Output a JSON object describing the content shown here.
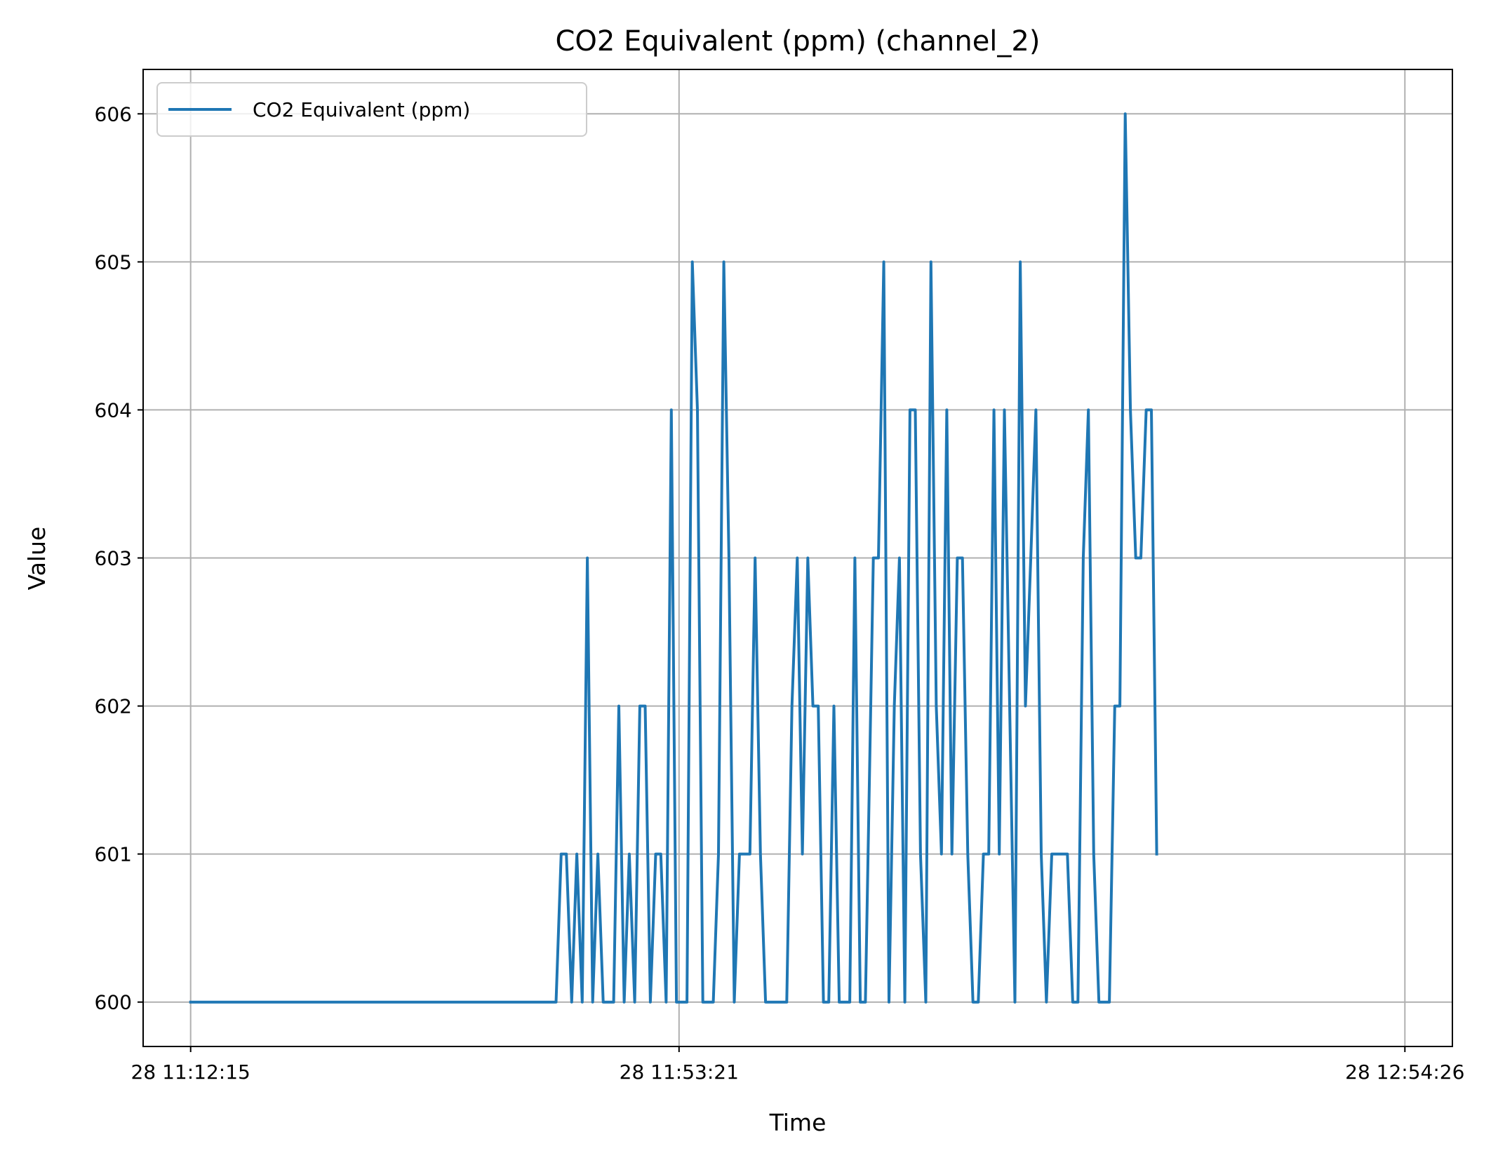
{
  "chart_data": {
    "type": "line",
    "title": "CO2 Equivalent (ppm) (channel_2)",
    "xlabel": "Time",
    "ylabel": "Value",
    "x_tick_labels": [
      "28 11:12:15",
      "28 11:53:21",
      "28 12:54:26"
    ],
    "x_ticks": [
      "11:12:15",
      "11:53:21",
      "12:54:26"
    ],
    "y_ticks": [
      600,
      601,
      602,
      603,
      604,
      605,
      606
    ],
    "xlim": [
      "11:08:15",
      "12:58:26"
    ],
    "ylim": [
      599.7,
      606.3
    ],
    "grid": true,
    "legend_position": "top-left",
    "series": [
      {
        "name": "CO2 Equivalent (ppm)",
        "color": "#1f77b4",
        "points": [
          [
            "11:12:15",
            600
          ],
          [
            "11:43:00",
            600
          ],
          [
            "11:43:26",
            601
          ],
          [
            "11:43:52",
            601
          ],
          [
            "11:44:19",
            600
          ],
          [
            "11:44:45",
            601
          ],
          [
            "11:45:12",
            600
          ],
          [
            "11:45:38",
            603
          ],
          [
            "11:46:05",
            600
          ],
          [
            "11:46:31",
            601
          ],
          [
            "11:46:58",
            600
          ],
          [
            "11:47:51",
            600
          ],
          [
            "11:48:17",
            602
          ],
          [
            "11:48:44",
            600
          ],
          [
            "11:49:10",
            601
          ],
          [
            "11:49:37",
            600
          ],
          [
            "11:50:03",
            602
          ],
          [
            "11:50:30",
            602
          ],
          [
            "11:50:56",
            600
          ],
          [
            "11:51:23",
            601
          ],
          [
            "11:51:49",
            601
          ],
          [
            "11:52:16",
            600
          ],
          [
            "11:52:42",
            604
          ],
          [
            "11:53:08",
            600
          ],
          [
            "11:54:01",
            600
          ],
          [
            "11:54:28",
            605
          ],
          [
            "11:54:54",
            604
          ],
          [
            "11:55:21",
            600
          ],
          [
            "11:56:14",
            600
          ],
          [
            "11:56:40",
            601
          ],
          [
            "11:57:07",
            605
          ],
          [
            "11:57:33",
            603
          ],
          [
            "11:58:00",
            600
          ],
          [
            "11:58:26",
            601
          ],
          [
            "11:59:19",
            601
          ],
          [
            "11:59:45",
            603
          ],
          [
            "12:00:12",
            601
          ],
          [
            "12:00:38",
            600
          ],
          [
            "12:02:25",
            600
          ],
          [
            "12:02:51",
            602
          ],
          [
            "12:03:18",
            603
          ],
          [
            "12:03:44",
            601
          ],
          [
            "12:04:11",
            603
          ],
          [
            "12:04:37",
            602
          ],
          [
            "12:05:04",
            602
          ],
          [
            "12:05:30",
            600
          ],
          [
            "12:05:57",
            600
          ],
          [
            "12:06:23",
            602
          ],
          [
            "12:06:50",
            600
          ],
          [
            "12:07:43",
            600
          ],
          [
            "12:08:09",
            603
          ],
          [
            "12:08:36",
            600
          ],
          [
            "12:09:02",
            600
          ],
          [
            "12:09:29",
            602
          ],
          [
            "12:09:42",
            603
          ],
          [
            "12:10:08",
            603
          ],
          [
            "12:10:35",
            605
          ],
          [
            "12:11:01",
            600
          ],
          [
            "12:11:28",
            602
          ],
          [
            "12:11:54",
            603
          ],
          [
            "12:12:21",
            600
          ],
          [
            "12:12:47",
            604
          ],
          [
            "12:13:14",
            604
          ],
          [
            "12:13:40",
            601
          ],
          [
            "12:14:07",
            600
          ],
          [
            "12:14:33",
            605
          ],
          [
            "12:15:00",
            602
          ],
          [
            "12:15:26",
            601
          ],
          [
            "12:15:53",
            604
          ],
          [
            "12:16:19",
            601
          ],
          [
            "12:16:46",
            603
          ],
          [
            "12:17:12",
            603
          ],
          [
            "12:17:39",
            601
          ],
          [
            "12:18:05",
            600
          ],
          [
            "12:18:32",
            600
          ],
          [
            "12:18:58",
            601
          ],
          [
            "12:19:25",
            601
          ],
          [
            "12:19:51",
            604
          ],
          [
            "12:20:18",
            601
          ],
          [
            "12:20:44",
            604
          ],
          [
            "12:21:37",
            600
          ],
          [
            "12:22:04",
            605
          ],
          [
            "12:22:30",
            602
          ],
          [
            "12:22:57",
            603
          ],
          [
            "12:23:23",
            604
          ],
          [
            "12:23:50",
            601
          ],
          [
            "12:24:16",
            600
          ],
          [
            "12:24:43",
            601
          ],
          [
            "12:26:02",
            601
          ],
          [
            "12:26:29",
            600
          ],
          [
            "12:26:55",
            600
          ],
          [
            "12:27:22",
            603
          ],
          [
            "12:27:48",
            604
          ],
          [
            "12:28:15",
            601
          ],
          [
            "12:28:41",
            600
          ],
          [
            "12:29:34",
            600
          ],
          [
            "12:30:01",
            602
          ],
          [
            "12:30:27",
            602
          ],
          [
            "12:30:54",
            606
          ],
          [
            "12:31:20",
            604
          ],
          [
            "12:31:47",
            603
          ],
          [
            "12:32:13",
            603
          ],
          [
            "12:32:40",
            604
          ],
          [
            "12:33:06",
            604
          ],
          [
            "12:33:33",
            601
          ]
        ]
      }
    ]
  }
}
